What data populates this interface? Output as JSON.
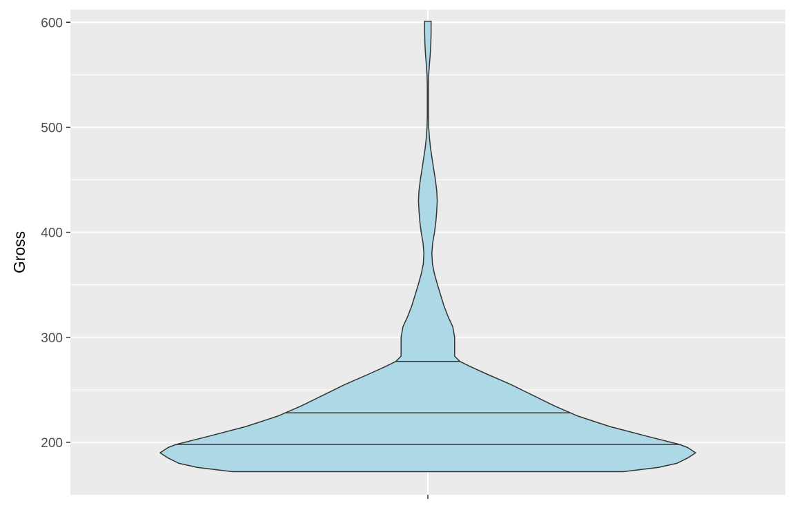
{
  "chart_data": {
    "type": "violin",
    "title": "",
    "xlabel": "",
    "ylabel": "Gross",
    "ylim": [
      150,
      612
    ],
    "y_ticks": [
      200,
      300,
      400,
      500,
      600
    ],
    "y_minor_ticks": [
      250,
      350,
      450,
      550
    ],
    "x_ticks": [
      ""
    ],
    "grid": true,
    "colors": {
      "fill": "#add8e6",
      "outline": "#333333",
      "panel": "#ebebeb",
      "grid": "#ffffff"
    },
    "series": [
      {
        "data_min": 172,
        "data_max": 601,
        "quantiles": [
          198,
          228,
          277
        ],
        "density_profile": [
          [
            172,
            0.73
          ],
          [
            176,
            0.86
          ],
          [
            180,
            0.93
          ],
          [
            185,
            0.97
          ],
          [
            190,
            1.0
          ],
          [
            195,
            0.97
          ],
          [
            198,
            0.94
          ],
          [
            205,
            0.83
          ],
          [
            215,
            0.68
          ],
          [
            225,
            0.56
          ],
          [
            235,
            0.47
          ],
          [
            245,
            0.39
          ],
          [
            255,
            0.31
          ],
          [
            265,
            0.22
          ],
          [
            272,
            0.16
          ],
          [
            277,
            0.12
          ],
          [
            282,
            0.1
          ],
          [
            290,
            0.1
          ],
          [
            300,
            0.1
          ],
          [
            310,
            0.093
          ],
          [
            320,
            0.075
          ],
          [
            330,
            0.06
          ],
          [
            340,
            0.048
          ],
          [
            350,
            0.036
          ],
          [
            360,
            0.025
          ],
          [
            370,
            0.017
          ],
          [
            380,
            0.015
          ],
          [
            390,
            0.018
          ],
          [
            400,
            0.025
          ],
          [
            410,
            0.03
          ],
          [
            420,
            0.033
          ],
          [
            430,
            0.035
          ],
          [
            440,
            0.033
          ],
          [
            450,
            0.028
          ],
          [
            460,
            0.022
          ],
          [
            470,
            0.016
          ],
          [
            480,
            0.01
          ],
          [
            490,
            0.006
          ],
          [
            500,
            0.003
          ],
          [
            510,
            0.002
          ],
          [
            520,
            0.002
          ],
          [
            530,
            0.002
          ],
          [
            540,
            0.002
          ],
          [
            550,
            0.003
          ],
          [
            560,
            0.006
          ],
          [
            570,
            0.009
          ],
          [
            580,
            0.011
          ],
          [
            590,
            0.012
          ],
          [
            601,
            0.012
          ]
        ]
      }
    ]
  }
}
